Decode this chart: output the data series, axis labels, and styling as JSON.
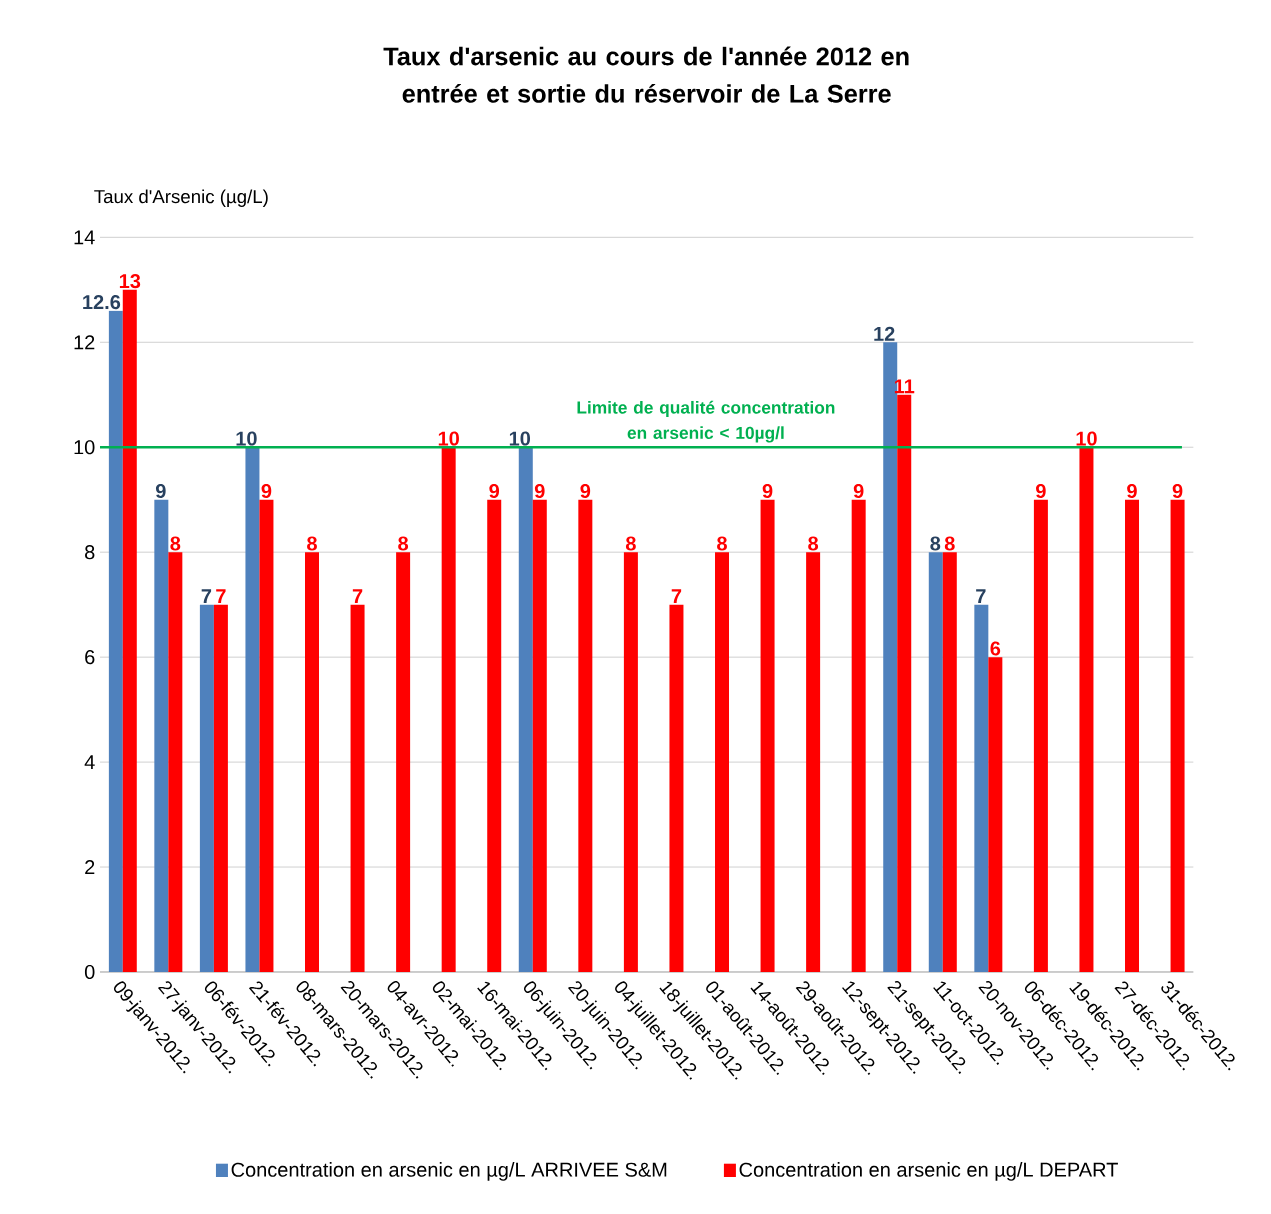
{
  "chart_data": {
    "type": "bar",
    "title": "Taux d'arsenic au cours de l'année 2012 en entrée et sortie du réservoir de La Serre",
    "ylabel": "Taux d'Arsenic (µg/L)",
    "categories": [
      "09-janv-2012.",
      "27-janv-2012.",
      "06-fév-2012.",
      "21-fév-2012.",
      "08-mars-2012.",
      "20-mars-2012.",
      "04-avr-2012.",
      "02-mai-2012.",
      "16-mai-2012.",
      "06-juin-2012.",
      "20-juin-2012.",
      "04-juillet-2012.",
      "18-juillet-2012.",
      "01-août-2012.",
      "14-août-2012.",
      "29-août-2012.",
      "12-sept-2012.",
      "21-sept-2012.",
      "11-oct-2012.",
      "20-nov-2012.",
      "06-déc-2012.",
      "19-déc-2012.",
      "27-déc-2012.",
      "31-déc-2012."
    ],
    "series": [
      {
        "name": "Concentration en arsenic en µg/L ARRIVEE S&M",
        "color": "#4f81bd",
        "values": [
          12.6,
          9,
          7,
          10,
          null,
          null,
          null,
          null,
          null,
          10,
          null,
          null,
          null,
          null,
          null,
          null,
          null,
          12,
          8,
          7,
          null,
          null,
          null,
          null
        ]
      },
      {
        "name": "Concentration en arsenic en µg/L DEPART",
        "color": "#ff0000",
        "values": [
          13,
          8,
          7,
          9,
          8,
          7,
          8,
          10,
          9,
          9,
          9,
          8,
          7,
          8,
          9,
          8,
          9,
          11,
          8,
          6,
          9,
          10,
          9,
          9
        ]
      }
    ],
    "ylim": [
      0,
      14
    ],
    "yticks": [
      0,
      2,
      4,
      6,
      8,
      10,
      12,
      14
    ],
    "grid": "y",
    "legend": "bottom",
    "data_labels": true,
    "ref_lines": [
      {
        "axis": "y",
        "value": 10,
        "label": "Limite de qualité concentration en arsenic < 10µg/l",
        "color": "#00b050"
      }
    ]
  }
}
